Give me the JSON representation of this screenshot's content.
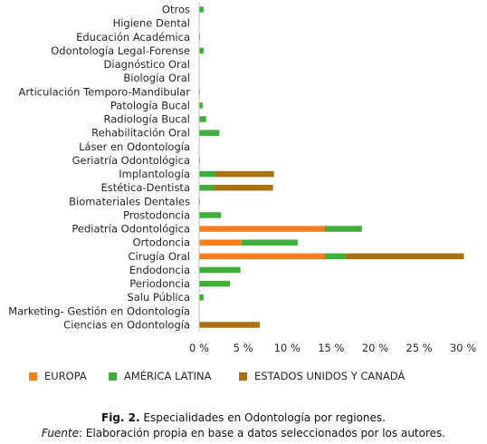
{
  "chart_data": {
    "type": "bar",
    "orientation": "horizontal",
    "stacked": true,
    "categories": [
      "Otros",
      "Higiene Dental",
      "Educación Académica",
      "Odontología Legal-Forense",
      "Diagnóstico Oral",
      "Biología Oral",
      "Articulación Temporo-Mandibular",
      "Patología Bucal",
      "Radiología Bucal",
      "Rehabilitación Oral",
      "Láser en Odontología",
      "Geriatría Odontológica",
      "Implantología",
      "Estética-Dentista",
      "Biomateriales Dentales",
      "Prostodoncia",
      "Pediatría Odontológica",
      "Ortodoncia",
      "Cirugía Oral",
      "Endodoncia",
      "Periodoncia",
      "Salu Pública",
      "Marketing- Gestión en Odontología",
      "Ciencias en Odontología"
    ],
    "series": [
      {
        "name": "EUROPA",
        "color": "#f47f20",
        "values": [
          0,
          0,
          0,
          0,
          0,
          0,
          0,
          0,
          0,
          0,
          0,
          0,
          0,
          0,
          0,
          0,
          14.3,
          4.8,
          14.3,
          0,
          0,
          0,
          0,
          0
        ]
      },
      {
        "name": "AMÉRICA LATINA",
        "color": "#3fae3a",
        "values": [
          0.5,
          0,
          0.1,
          0.5,
          0,
          0,
          0.1,
          0.4,
          0.8,
          2.3,
          0,
          0.1,
          1.9,
          1.7,
          0.1,
          2.5,
          4.2,
          6.4,
          2.3,
          4.7,
          3.5,
          0.5,
          0,
          0
        ]
      },
      {
        "name": "ESTADOS UNIDOS Y CANADÁ",
        "color": "#a87111",
        "values": [
          0,
          0,
          0,
          0,
          0,
          0,
          0,
          0,
          0,
          0,
          0,
          0,
          6.6,
          6.7,
          0,
          0,
          0,
          0,
          13.5,
          0,
          0,
          0,
          0,
          6.9
        ]
      }
    ],
    "xlim": [
      0,
      30
    ],
    "x_ticks": [
      "0 %",
      "5 %",
      "10 %",
      "15 %",
      "20 %",
      "25 %",
      "30 %"
    ],
    "x_tick_values": [
      0,
      5,
      10,
      15,
      20,
      25,
      30
    ],
    "grid": false,
    "legend_position": "bottom",
    "title": "",
    "xlabel": "",
    "ylabel": ""
  },
  "caption": {
    "label": "Fig. 2.",
    "text": " Especialidades en Odontología por regiones.",
    "source_label": "Fuente",
    "source_text": ": Elaboración propia en base a datos seleccionados por los autores."
  }
}
